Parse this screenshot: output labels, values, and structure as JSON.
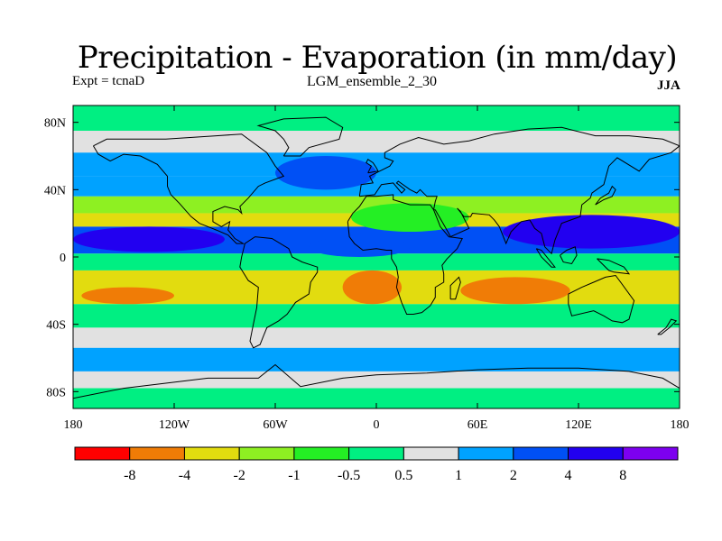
{
  "title": "Precipitation - Evaporation (in mm/day)",
  "experiment": "Expt = tcnaD",
  "run_name": "LGM_ensemble_2_30",
  "season": "JJA",
  "colors": {
    "lt_-8": "#ff0000",
    "-8_-4": "#f07c06",
    "-4_-2": "#e2dc0f",
    "-2_-1": "#8ef022",
    "-1_-0.5": "#24ef24",
    "-0.5_0.5": "#00ef82",
    "0.5_1": "#e1e1e1",
    "1_2": "#00a2ff",
    "2_4": "#0050f5",
    "4_8": "#2200f0",
    "gt_8": "#7d00f0"
  },
  "chart_data": {
    "type": "heatmap",
    "variable": "Precipitation - Evaporation",
    "units": "mm/day",
    "lon_range": [
      -180,
      180
    ],
    "lat_range": [
      -90,
      90
    ],
    "x_ticks": [
      {
        "lon": -180,
        "label": "180"
      },
      {
        "lon": -120,
        "label": "120W"
      },
      {
        "lon": -60,
        "label": "60W"
      },
      {
        "lon": 0,
        "label": "0"
      },
      {
        "lon": 60,
        "label": "60E"
      },
      {
        "lon": 120,
        "label": "120E"
      },
      {
        "lon": 180,
        "label": "180"
      }
    ],
    "y_ticks": [
      {
        "lat": 80,
        "label": "80N"
      },
      {
        "lat": 40,
        "label": "40N"
      },
      {
        "lat": 0,
        "label": "0"
      },
      {
        "lat": -40,
        "label": "40S"
      },
      {
        "lat": -80,
        "label": "80S"
      }
    ],
    "colorbar": {
      "levels": [
        -8,
        -4,
        -2,
        -1,
        -0.5,
        0.5,
        1,
        2,
        4,
        8
      ],
      "labels": [
        "-8",
        "-4",
        "-2",
        "-1",
        "-0.5",
        "0.5",
        "1",
        "2",
        "4",
        "8"
      ],
      "bins": [
        "lt_-8",
        "-8_-4",
        "-4_-2",
        "-2_-1",
        "-1_-0.5",
        "-0.5_0.5",
        "0.5_1",
        "1_2",
        "2_4",
        "4_8",
        "gt_8"
      ]
    },
    "zonal_bands_pacific": [
      {
        "lat_from": 90,
        "lat_to": 75,
        "bin": "-0.5_0.5"
      },
      {
        "lat_from": 75,
        "lat_to": 62,
        "bin": "0.5_1"
      },
      {
        "lat_from": 62,
        "lat_to": 48,
        "bin": "1_2"
      },
      {
        "lat_from": 48,
        "lat_to": 36,
        "bin": "1_2"
      },
      {
        "lat_from": 36,
        "lat_to": 26,
        "bin": "-2_-1"
      },
      {
        "lat_from": 26,
        "lat_to": 18,
        "bin": "-4_-2"
      },
      {
        "lat_from": 18,
        "lat_to": 2,
        "bin": "2_4"
      },
      {
        "lat_from": 2,
        "lat_to": -8,
        "bin": "-0.5_0.5"
      },
      {
        "lat_from": -8,
        "lat_to": -28,
        "bin": "-4_-2"
      },
      {
        "lat_from": -28,
        "lat_to": -42,
        "bin": "-0.5_0.5"
      },
      {
        "lat_from": -42,
        "lat_to": -54,
        "bin": "0.5_1"
      },
      {
        "lat_from": -54,
        "lat_to": -68,
        "bin": "1_2"
      },
      {
        "lat_from": -68,
        "lat_to": -78,
        "bin": "0.5_1"
      },
      {
        "lat_from": -78,
        "lat_to": -90,
        "bin": "-0.5_0.5"
      }
    ],
    "features": [
      {
        "region": "East Pacific ITCZ",
        "lon": [
          -180,
          -90
        ],
        "lat": [
          3,
          18
        ],
        "bin": "4_8"
      },
      {
        "region": "Central Atlantic ITCZ",
        "lon": [
          -40,
          20
        ],
        "lat": [
          0,
          12
        ],
        "bin": "2_4"
      },
      {
        "region": "Indian monsoon / W Pacific",
        "lon": [
          75,
          180
        ],
        "lat": [
          5,
          25
        ],
        "bin": "4_8"
      },
      {
        "region": "SE Pacific subtropics",
        "lon": [
          -175,
          -120
        ],
        "lat": [
          -28,
          -18
        ],
        "bin": "-8_-4"
      },
      {
        "region": "S Atlantic subtropics",
        "lon": [
          -20,
          15
        ],
        "lat": [
          -28,
          -8
        ],
        "bin": "-8_-4"
      },
      {
        "region": "S Indian Ocean subtropics",
        "lon": [
          50,
          115
        ],
        "lat": [
          -28,
          -12
        ],
        "bin": "-8_-4"
      },
      {
        "region": "N Atlantic mid-latitudes",
        "lon": [
          -60,
          0
        ],
        "lat": [
          40,
          60
        ],
        "bin": "2_4"
      },
      {
        "region": "Sahara / Arabia",
        "lon": [
          -15,
          55
        ],
        "lat": [
          15,
          32
        ],
        "bin": "-1_-0.5"
      },
      {
        "region": "Antarctica",
        "lon": [
          -180,
          180
        ],
        "lat": [
          -90,
          -78
        ],
        "bin": "-0.5_0.5"
      }
    ]
  }
}
